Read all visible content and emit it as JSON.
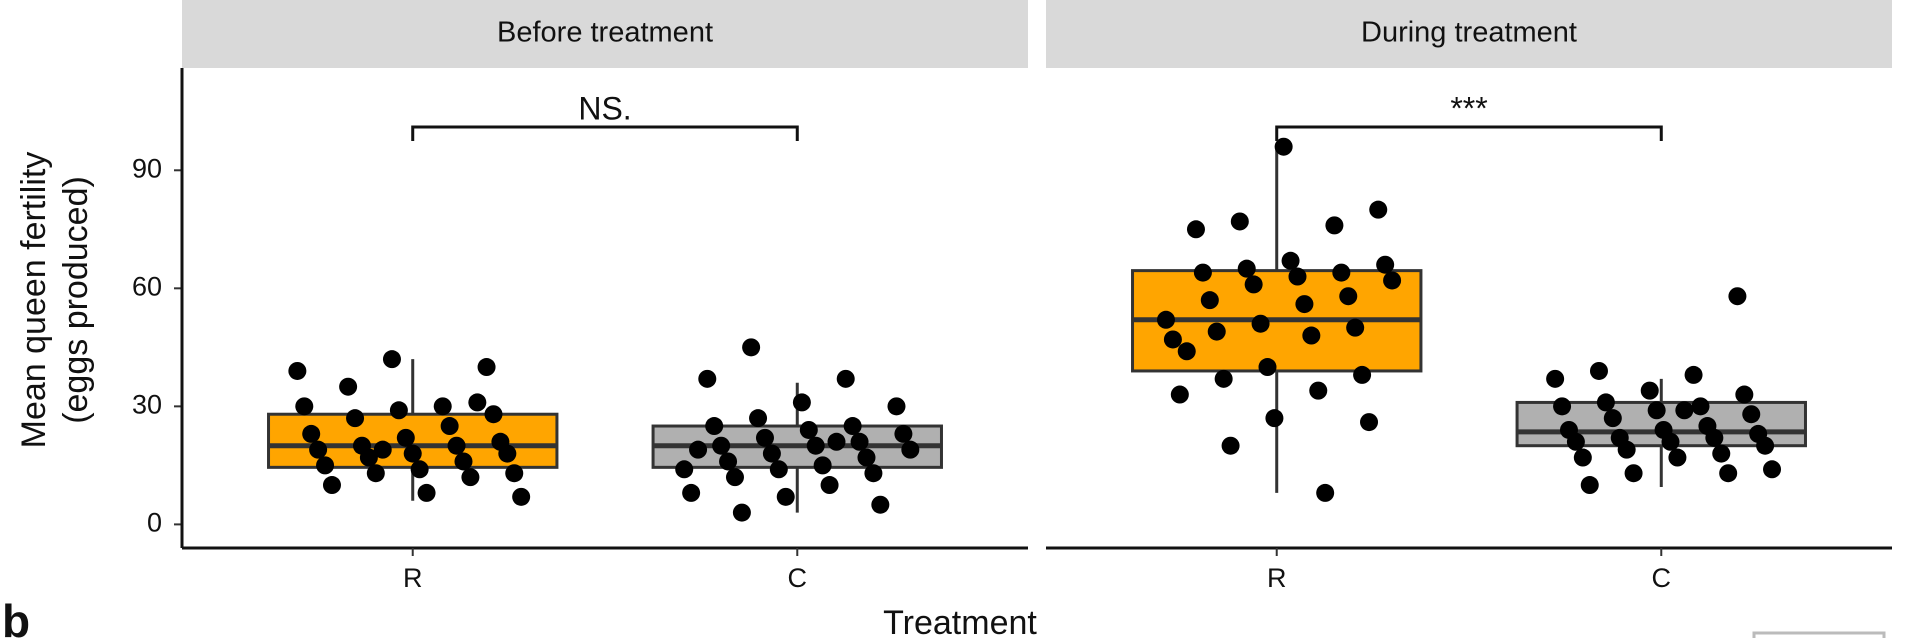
{
  "chart_data": {
    "type": "box",
    "y_label": [
      "Mean queen fertility",
      "(eggs produced)"
    ],
    "x_label": "Treatment",
    "panel_label": "b",
    "ylim": [
      -6,
      116
    ],
    "yticks": [
      0,
      30,
      60,
      90
    ],
    "categories": [
      "R",
      "C"
    ],
    "colors": [
      "#ffa500",
      "#b0b0b0"
    ],
    "facets": [
      {
        "title": "Before treatment",
        "annotation": "NS.",
        "groups": [
          {
            "q1": 14.5,
            "median": 20,
            "q3": 28,
            "whisker_low": 6,
            "whisker_high": 42,
            "points": [
              39,
              42,
              40,
              35,
              30,
              30,
              29,
              28,
              27,
              25,
              23,
              22,
              21,
              20,
              20,
              19,
              18,
              18,
              17,
              16,
              15,
              14,
              13,
              13,
              12,
              10,
              8,
              7,
              19,
              31
            ]
          },
          {
            "q1": 14.5,
            "median": 20,
            "q3": 25,
            "whisker_low": 3,
            "whisker_high": 36,
            "points": [
              45,
              37,
              37,
              31,
              30,
              27,
              25,
              25,
              24,
              23,
              22,
              21,
              20,
              20,
              19,
              18,
              17,
              16,
              15,
              14,
              14,
              13,
              12,
              10,
              8,
              7,
              5,
              3,
              21,
              19
            ]
          }
        ]
      },
      {
        "title": "During treatment",
        "annotation": "***",
        "groups": [
          {
            "q1": 39,
            "median": 52,
            "q3": 64.5,
            "whisker_low": 8,
            "whisker_high": 96,
            "points": [
              96,
              80,
              77,
              76,
              75,
              67,
              66,
              65,
              64,
              64,
              63,
              62,
              61,
              58,
              57,
              56,
              52,
              51,
              50,
              49,
              48,
              47,
              40,
              38,
              37,
              34,
              33,
              27,
              26,
              20,
              8,
              44
            ]
          },
          {
            "q1": 20,
            "median": 23.5,
            "q3": 31,
            "whisker_low": 9.5,
            "whisker_high": 37,
            "points": [
              58,
              39,
              38,
              37,
              34,
              33,
              31,
              30,
              30,
              29,
              28,
              27,
              25,
              24,
              24,
              23,
              22,
              22,
              21,
              21,
              20,
              19,
              18,
              17,
              17,
              14,
              13,
              13,
              10,
              29
            ]
          }
        ]
      }
    ]
  }
}
